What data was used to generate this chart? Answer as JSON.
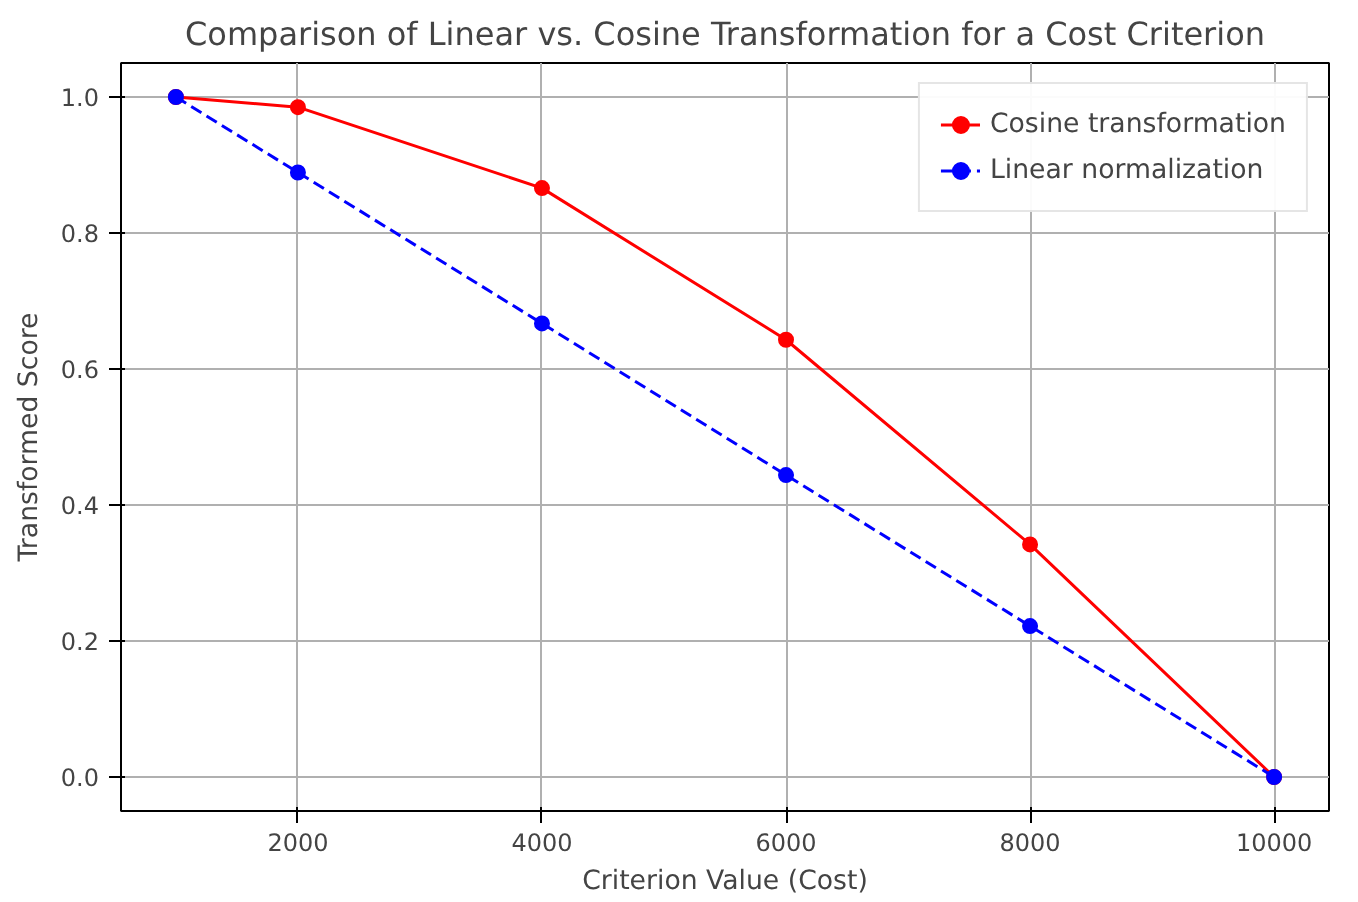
{
  "chart_data": {
    "type": "line",
    "title": "Comparison of Linear vs. Cosine Transformation for a Cost Criterion",
    "xlabel": "Criterion Value (Cost)",
    "ylabel": "Transformed Score",
    "x": [
      1000,
      2000,
      4000,
      6000,
      8000,
      10000
    ],
    "series": [
      {
        "name": "Cosine transformation",
        "color": "#ff0000",
        "line_style": "solid",
        "values": [
          1.0,
          0.985,
          0.866,
          0.643,
          0.342,
          0.0
        ]
      },
      {
        "name": "Linear normalization",
        "color": "#0000ff",
        "line_style": "dashed",
        "values": [
          1.0,
          0.889,
          0.667,
          0.444,
          0.222,
          0.0
        ]
      }
    ],
    "xlim": [
      550,
      10450
    ],
    "ylim": [
      -0.05,
      1.05
    ],
    "xticks": [
      2000,
      4000,
      6000,
      8000,
      10000
    ],
    "yticks": [
      {
        "value": 0,
        "label": "0.0"
      },
      {
        "value": 0.2,
        "label": "0.2"
      },
      {
        "value": 0.4,
        "label": "0.4"
      },
      {
        "value": 0.6,
        "label": "0.6"
      },
      {
        "value": 0.8,
        "label": "0.8"
      },
      {
        "value": 1.0,
        "label": "1.0"
      }
    ],
    "grid": true,
    "legend": "top right",
    "marker": "circle"
  }
}
